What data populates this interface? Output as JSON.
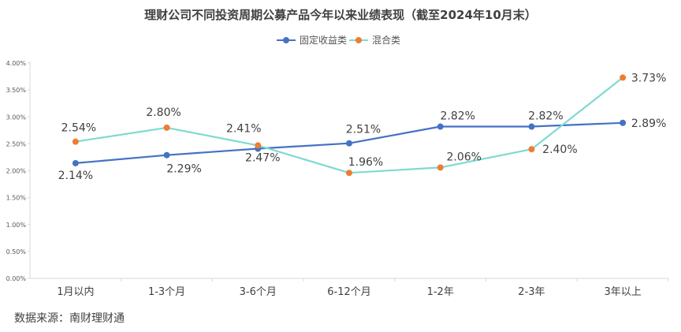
{
  "chart_data": {
    "type": "line",
    "title": "理财公司不同投资周期公募产品今年以来业绩表现（截至2024年10月末）",
    "categories": [
      "1月以内",
      "1-3个月",
      "3-6个月",
      "6-12个月",
      "1-2年",
      "2-3年",
      "3年以上"
    ],
    "y_ticks": [
      "0.00%",
      "0.50%",
      "1.00%",
      "1.50%",
      "2.00%",
      "2.50%",
      "3.00%",
      "3.50%",
      "4.00%"
    ],
    "ylim": [
      0,
      4
    ],
    "grid": false,
    "legend": "top-center",
    "series": [
      {
        "name": "固定收益类",
        "color": "#4472c4",
        "values": [
          2.14,
          2.29,
          2.41,
          2.51,
          2.82,
          2.82,
          2.89
        ],
        "labels": [
          "2.14%",
          "2.29%",
          "2.41%",
          "2.51%",
          "2.82%",
          "2.82%",
          "2.89%"
        ]
      },
      {
        "name": "混合类",
        "color": "#ed7d31",
        "line_color": "#7fdad0",
        "values": [
          2.54,
          2.8,
          2.47,
          1.96,
          2.06,
          2.4,
          3.73
        ],
        "labels": [
          "2.54%",
          "2.80%",
          "2.47%",
          "1.96%",
          "2.06%",
          "2.40%",
          "3.73%"
        ]
      }
    ]
  },
  "source": "数据来源：南财理财通"
}
